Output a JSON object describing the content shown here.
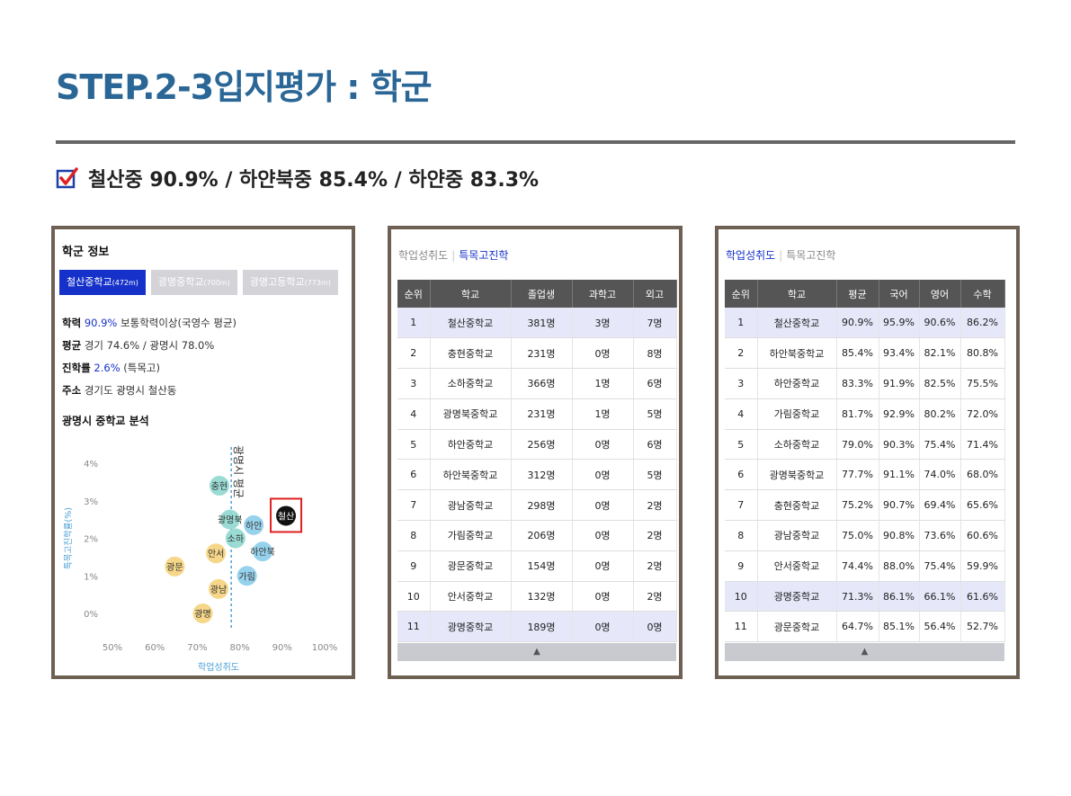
{
  "page": {
    "title": "STEP.2-3입지평가 : 학군",
    "subtitle": "철산중 90.9% / 하얀북중 85.4% / 하얀중 83.3%",
    "subtitle_actual": "철산중 90.9% / 하얀북중 85.4% / 하얀중 83.3%"
  },
  "panel1": {
    "heading": "학군 정보",
    "tabs": [
      {
        "name": "철산중학교",
        "size": "(472m)"
      },
      {
        "name": "광명중학교",
        "size": "(700m)"
      },
      {
        "name": "광명고등학교",
        "size": "(773m)"
      }
    ],
    "info": {
      "achievement_label": "학력",
      "achievement_value": "90.9%",
      "achievement_note": "보통학력이상(국영수 평균)",
      "avg_label": "평균",
      "avg_value": "경기 74.6% / 광명시 78.0%",
      "rate_label": "진학률",
      "rate_value": "2.6%",
      "rate_note": "(특목고)",
      "addr_label": "주소",
      "addr_value": "경기도 광명시 철산동"
    },
    "chart_title": "광명시 중학교 분석"
  },
  "chart_data": {
    "type": "scatter",
    "xlabel": "학업성취도",
    "ylabel": "특목고진학률(%)",
    "x_ticks": [
      "50%",
      "60%",
      "70%",
      "80%",
      "90%",
      "100%"
    ],
    "y_ticks": [
      "0%",
      "1%",
      "2%",
      "3%",
      "4%"
    ],
    "xlim": [
      50,
      100
    ],
    "ylim": [
      0,
      4
    ],
    "reference_label": "광명시 평균",
    "reference_x": 78.0,
    "points": [
      {
        "label": "철산",
        "x": 90.9,
        "y": 2.6,
        "color": "#111111",
        "highlight": true
      },
      {
        "label": "충현",
        "x": 75.2,
        "y": 3.4,
        "color": "#8fd8cf"
      },
      {
        "label": "광명북",
        "x": 77.7,
        "y": 2.5,
        "color": "#8fd8cf"
      },
      {
        "label": "하안",
        "x": 83.3,
        "y": 2.35,
        "color": "#8ccdeb"
      },
      {
        "label": "소하",
        "x": 79.0,
        "y": 2.0,
        "color": "#8fd8cf"
      },
      {
        "label": "하안북",
        "x": 85.4,
        "y": 1.65,
        "color": "#8ccdeb"
      },
      {
        "label": "안서",
        "x": 74.4,
        "y": 1.6,
        "color": "#f5d37c"
      },
      {
        "label": "광문",
        "x": 64.7,
        "y": 1.25,
        "color": "#f5d37c"
      },
      {
        "label": "가림",
        "x": 81.7,
        "y": 1.0,
        "color": "#8ccdeb"
      },
      {
        "label": "광남",
        "x": 75.0,
        "y": 0.65,
        "color": "#f5d37c"
      },
      {
        "label": "광명",
        "x": 71.3,
        "y": 0.0,
        "color": "#f5d37c"
      }
    ]
  },
  "panel2": {
    "tab_inactive": "학업성취도",
    "tab_active": "특목고진학",
    "headers": [
      "순위",
      "학교",
      "졸업생",
      "과학고",
      "외고"
    ],
    "rows": [
      [
        "1",
        "철산중학교",
        "381명",
        "3명",
        "7명"
      ],
      [
        "2",
        "충현중학교",
        "231명",
        "0명",
        "8명"
      ],
      [
        "3",
        "소하중학교",
        "366명",
        "1명",
        "6명"
      ],
      [
        "4",
        "광명북중학교",
        "231명",
        "1명",
        "5명"
      ],
      [
        "5",
        "하안중학교",
        "256명",
        "0명",
        "6명"
      ],
      [
        "6",
        "하안북중학교",
        "312명",
        "0명",
        "5명"
      ],
      [
        "7",
        "광남중학교",
        "298명",
        "0명",
        "2명"
      ],
      [
        "8",
        "가림중학교",
        "206명",
        "0명",
        "2명"
      ],
      [
        "9",
        "광문중학교",
        "154명",
        "0명",
        "2명"
      ],
      [
        "10",
        "안서중학교",
        "132명",
        "0명",
        "2명"
      ],
      [
        "11",
        "광명중학교",
        "189명",
        "0명",
        "0명"
      ]
    ],
    "footer": "▲"
  },
  "panel3": {
    "tab_active": "학업성취도",
    "tab_inactive": "특목고진학",
    "headers": [
      "순위",
      "학교",
      "평균",
      "국어",
      "영어",
      "수학"
    ],
    "rows": [
      [
        "1",
        "철산중학교",
        "90.9%",
        "95.9%",
        "90.6%",
        "86.2%"
      ],
      [
        "2",
        "하안북중학교",
        "85.4%",
        "93.4%",
        "82.1%",
        "80.8%"
      ],
      [
        "3",
        "하안중학교",
        "83.3%",
        "91.9%",
        "82.5%",
        "75.5%"
      ],
      [
        "4",
        "가림중학교",
        "81.7%",
        "92.9%",
        "80.2%",
        "72.0%"
      ],
      [
        "5",
        "소하중학교",
        "79.0%",
        "90.3%",
        "75.4%",
        "71.4%"
      ],
      [
        "6",
        "광명북중학교",
        "77.7%",
        "91.1%",
        "74.0%",
        "68.0%"
      ],
      [
        "7",
        "충현중학교",
        "75.2%",
        "90.7%",
        "69.4%",
        "65.6%"
      ],
      [
        "8",
        "광남중학교",
        "75.0%",
        "90.8%",
        "73.6%",
        "60.6%"
      ],
      [
        "9",
        "안서중학교",
        "74.4%",
        "88.0%",
        "75.4%",
        "59.9%"
      ],
      [
        "10",
        "광명중학교",
        "71.3%",
        "86.1%",
        "66.1%",
        "61.6%"
      ],
      [
        "11",
        "광문중학교",
        "64.7%",
        "85.1%",
        "56.4%",
        "52.7%"
      ]
    ],
    "footer": "▲"
  }
}
